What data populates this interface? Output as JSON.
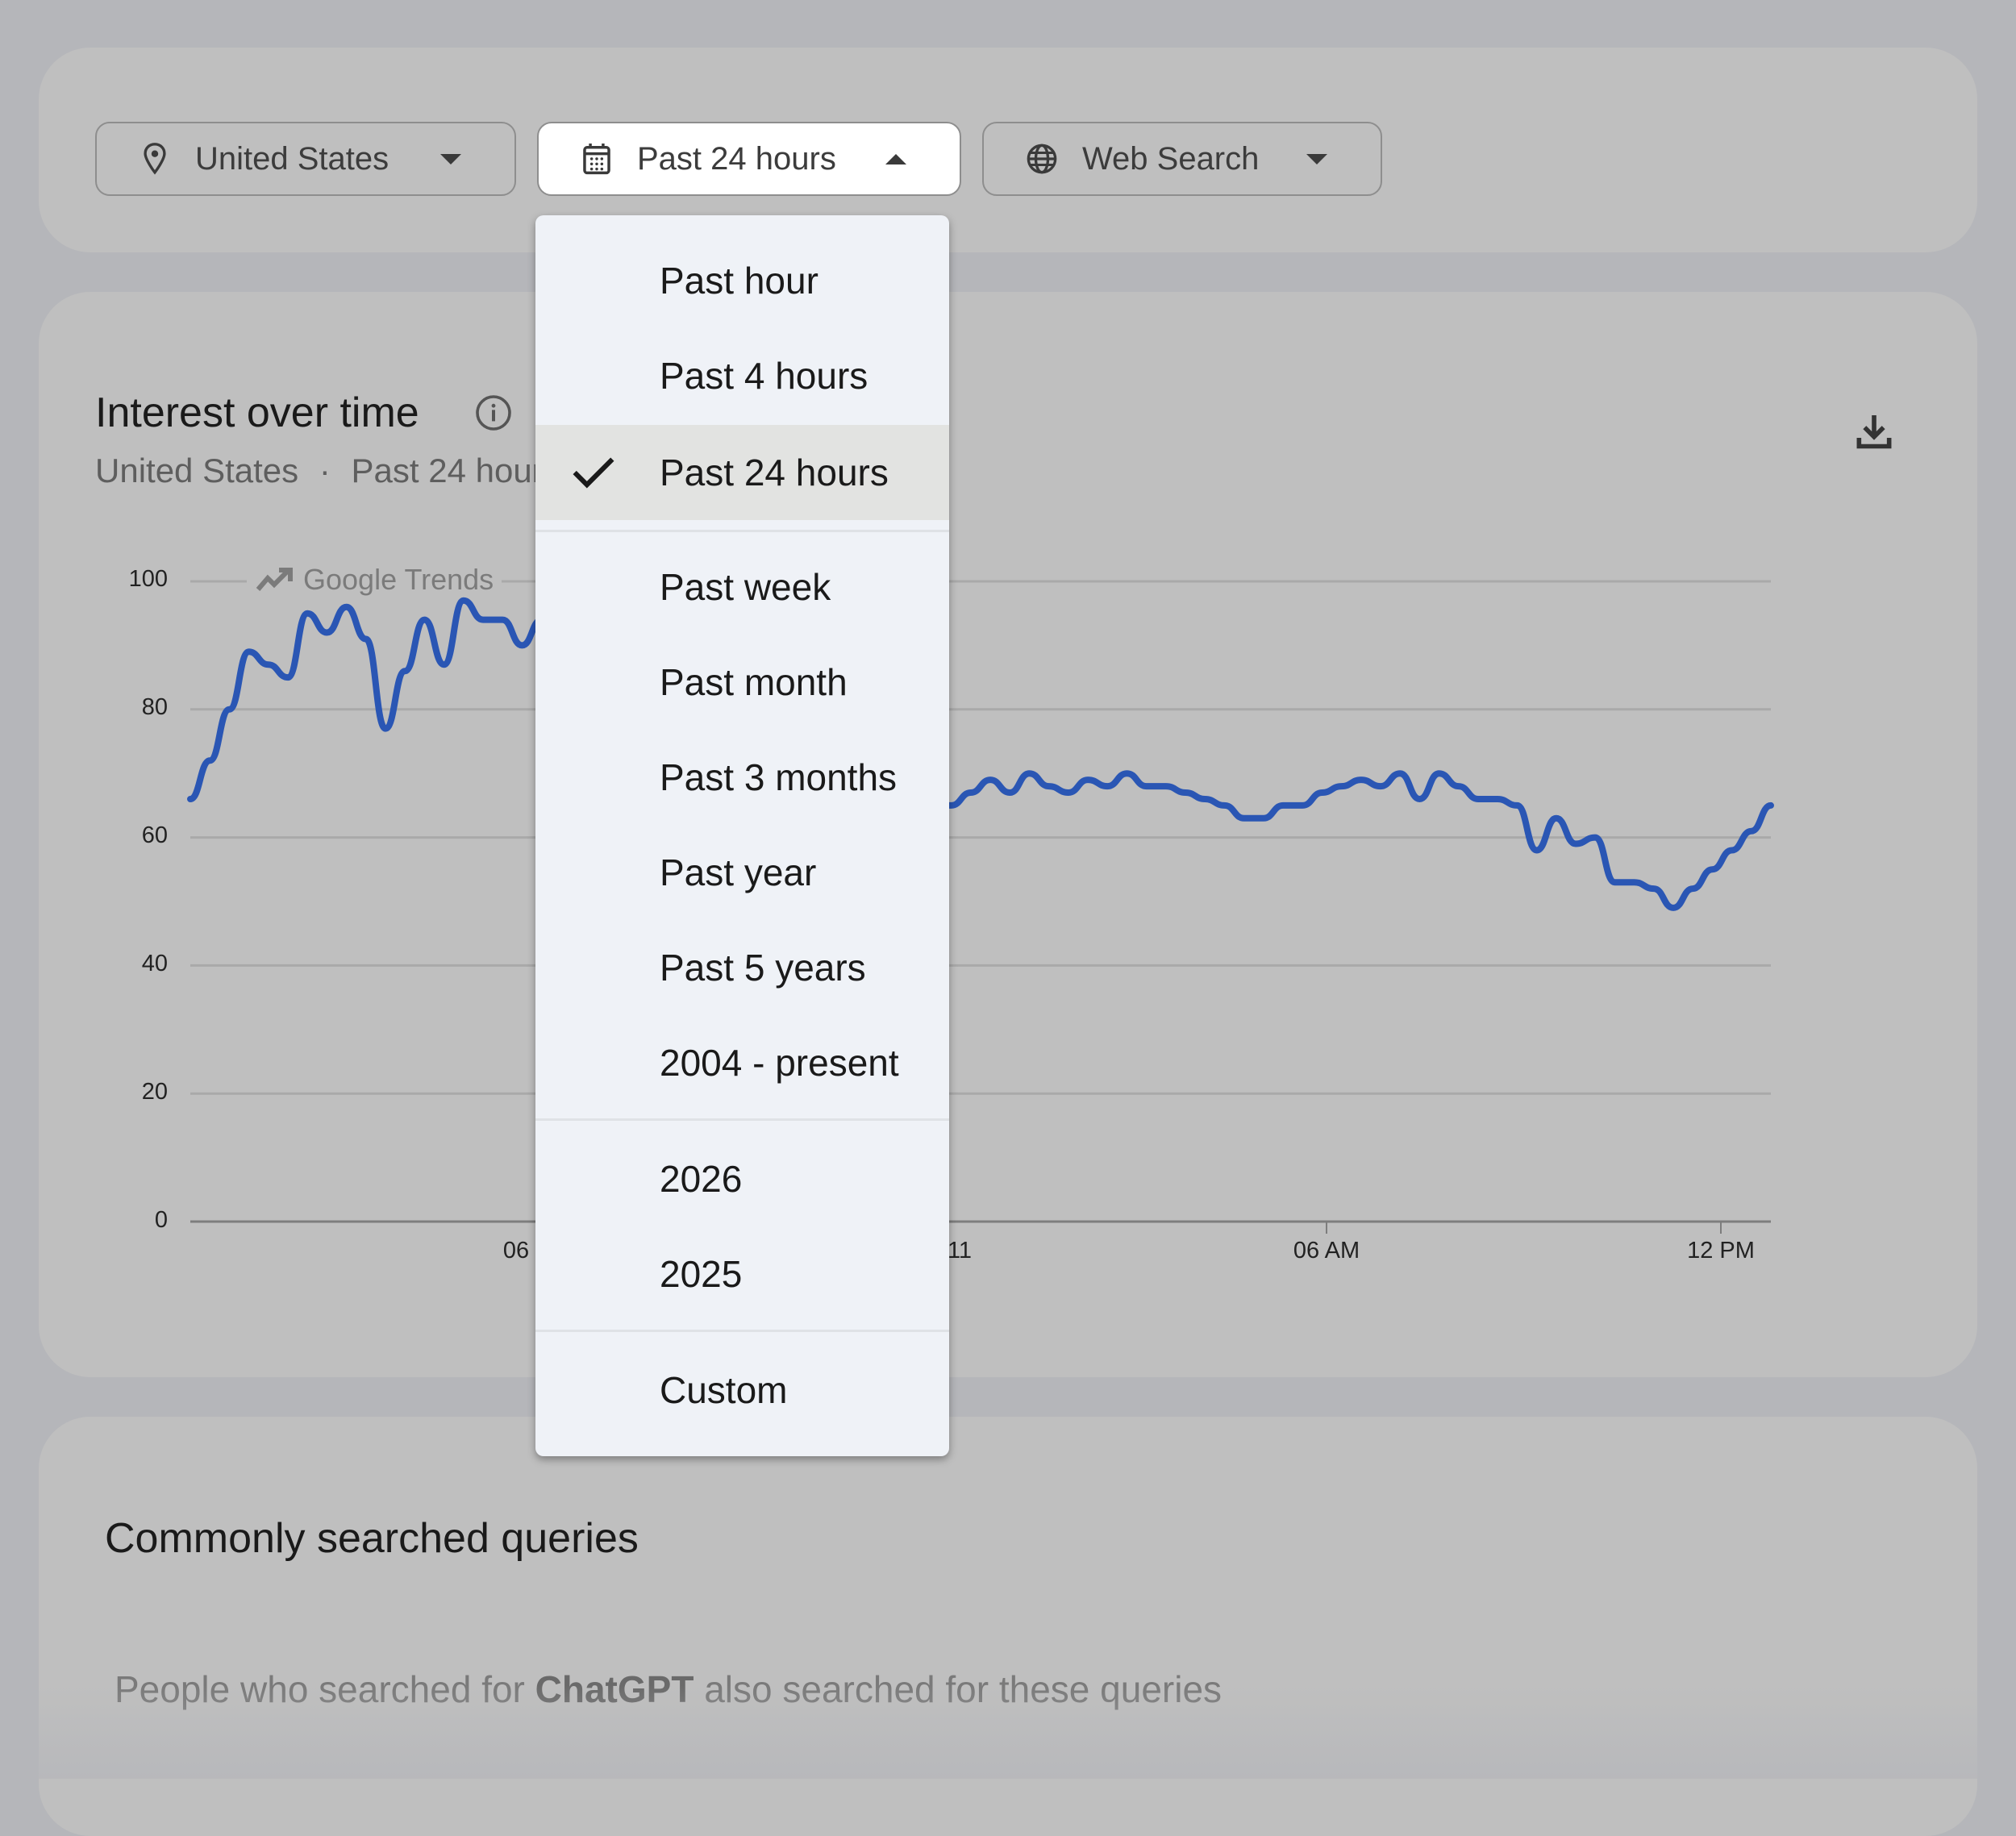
{
  "filters": {
    "geo": {
      "label": "United States",
      "icon": "location-pin-icon"
    },
    "time": {
      "label": "Past 24 hours",
      "icon": "calendar-icon",
      "expanded": true
    },
    "property": {
      "label": "Web Search",
      "icon": "globe-icon"
    }
  },
  "time_menu": {
    "selected": "Past 24 hours",
    "groups": [
      [
        "Past hour",
        "Past 4 hours",
        "Past 24 hours"
      ],
      [
        "Past week",
        "Past month",
        "Past 3 months",
        "Past year",
        "Past 5 years",
        "2004 - present"
      ],
      [
        "2026",
        "2025"
      ],
      [
        "Custom"
      ]
    ],
    "items": [
      "Past hour",
      "Past 4 hours",
      "Past 24 hours",
      "Past week",
      "Past month",
      "Past 3 months",
      "Past year",
      "Past 5 years",
      "2004 - present",
      "2026",
      "2025",
      "Custom"
    ]
  },
  "interest": {
    "title": "Interest over time",
    "subtitle_geo": "United States",
    "subtitle_sep": "·",
    "subtitle_time": "Past 24 hours",
    "watermark": "Google Trends",
    "line_color": "#2a56b4"
  },
  "chart_data": {
    "type": "line",
    "title": "Interest over time",
    "subtitle": "United States · Past 24 hours",
    "xlabel": "",
    "ylabel": "",
    "ylim": [
      0,
      100
    ],
    "y_ticks": [
      0,
      20,
      40,
      60,
      80,
      100
    ],
    "x_ticks": [
      "06",
      "11",
      "06 AM",
      "12 PM"
    ],
    "grid": true,
    "legend": null,
    "series": [
      {
        "name": "ChatGPT",
        "color": "#2a56b4",
        "values": [
          66,
          72,
          80,
          89,
          87,
          85,
          95,
          92,
          96,
          91,
          77,
          86,
          94,
          87,
          97,
          94,
          94,
          90,
          94,
          94,
          93,
          90,
          88,
          85,
          82,
          80,
          78,
          76,
          74,
          72,
          70,
          68,
          67,
          66,
          66,
          65,
          65,
          61,
          65,
          65,
          67,
          69,
          67,
          70,
          68,
          67,
          69,
          68,
          70,
          68,
          68,
          67,
          66,
          65,
          63,
          63,
          65,
          65,
          67,
          68,
          69,
          68,
          70,
          66,
          70,
          68,
          66,
          66,
          65,
          58,
          63,
          59,
          60,
          53,
          53,
          52,
          49,
          52,
          55,
          58,
          61,
          65
        ]
      }
    ]
  },
  "queries": {
    "title": "Commonly searched queries",
    "subtitle_prefix": "People who searched for ",
    "subtitle_term": "ChatGPT",
    "subtitle_suffix": " also searched for these queries"
  }
}
